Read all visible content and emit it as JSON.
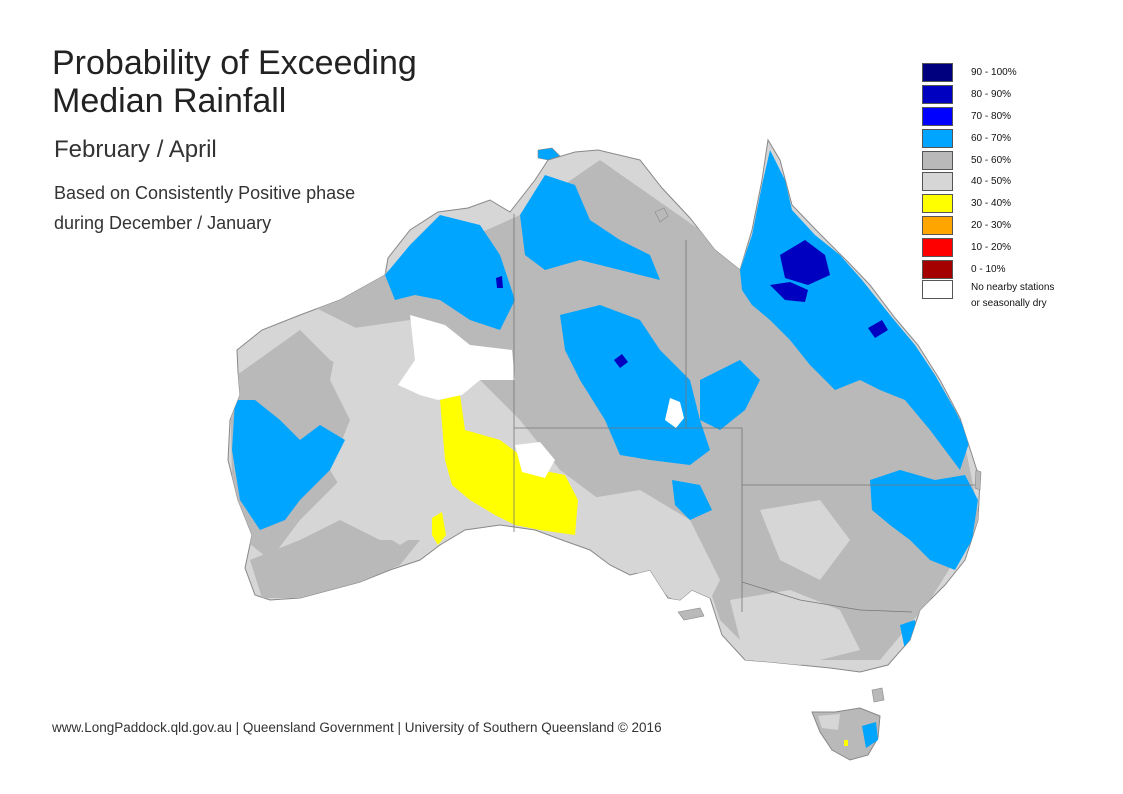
{
  "title_line1": "Probability of Exceeding",
  "title_line2": "Median Rainfall",
  "subtitle": "February / April",
  "desc_line1": "Based on Consistently Positive phase",
  "desc_line2": "during December / January",
  "footer": "www.LongPaddock.qld.gov.au | Queensland Government | University of Southern Queensland © 2016",
  "legend": {
    "items": [
      {
        "label": "90 - 100%",
        "color": "#00007f"
      },
      {
        "label": "80 - 90%",
        "color": "#0000c0"
      },
      {
        "label": "70 - 80%",
        "color": "#0000ff"
      },
      {
        "label": "60 - 70%",
        "color": "#00a5ff"
      },
      {
        "label": "50 - 60%",
        "color": "#b9b9b9"
      },
      {
        "label": "40 - 50%",
        "color": "#d6d6d6"
      },
      {
        "label": "30 - 40%",
        "color": "#ffff00"
      },
      {
        "label": "20 - 30%",
        "color": "#ffa500"
      },
      {
        "label": "10 - 20%",
        "color": "#ff0000"
      },
      {
        "label": "0 - 10%",
        "color": "#a50000"
      }
    ],
    "nodata_line1": "No nearby stations",
    "nodata_line2": "or seasonally dry",
    "nodata_color": "#ffffff"
  }
}
